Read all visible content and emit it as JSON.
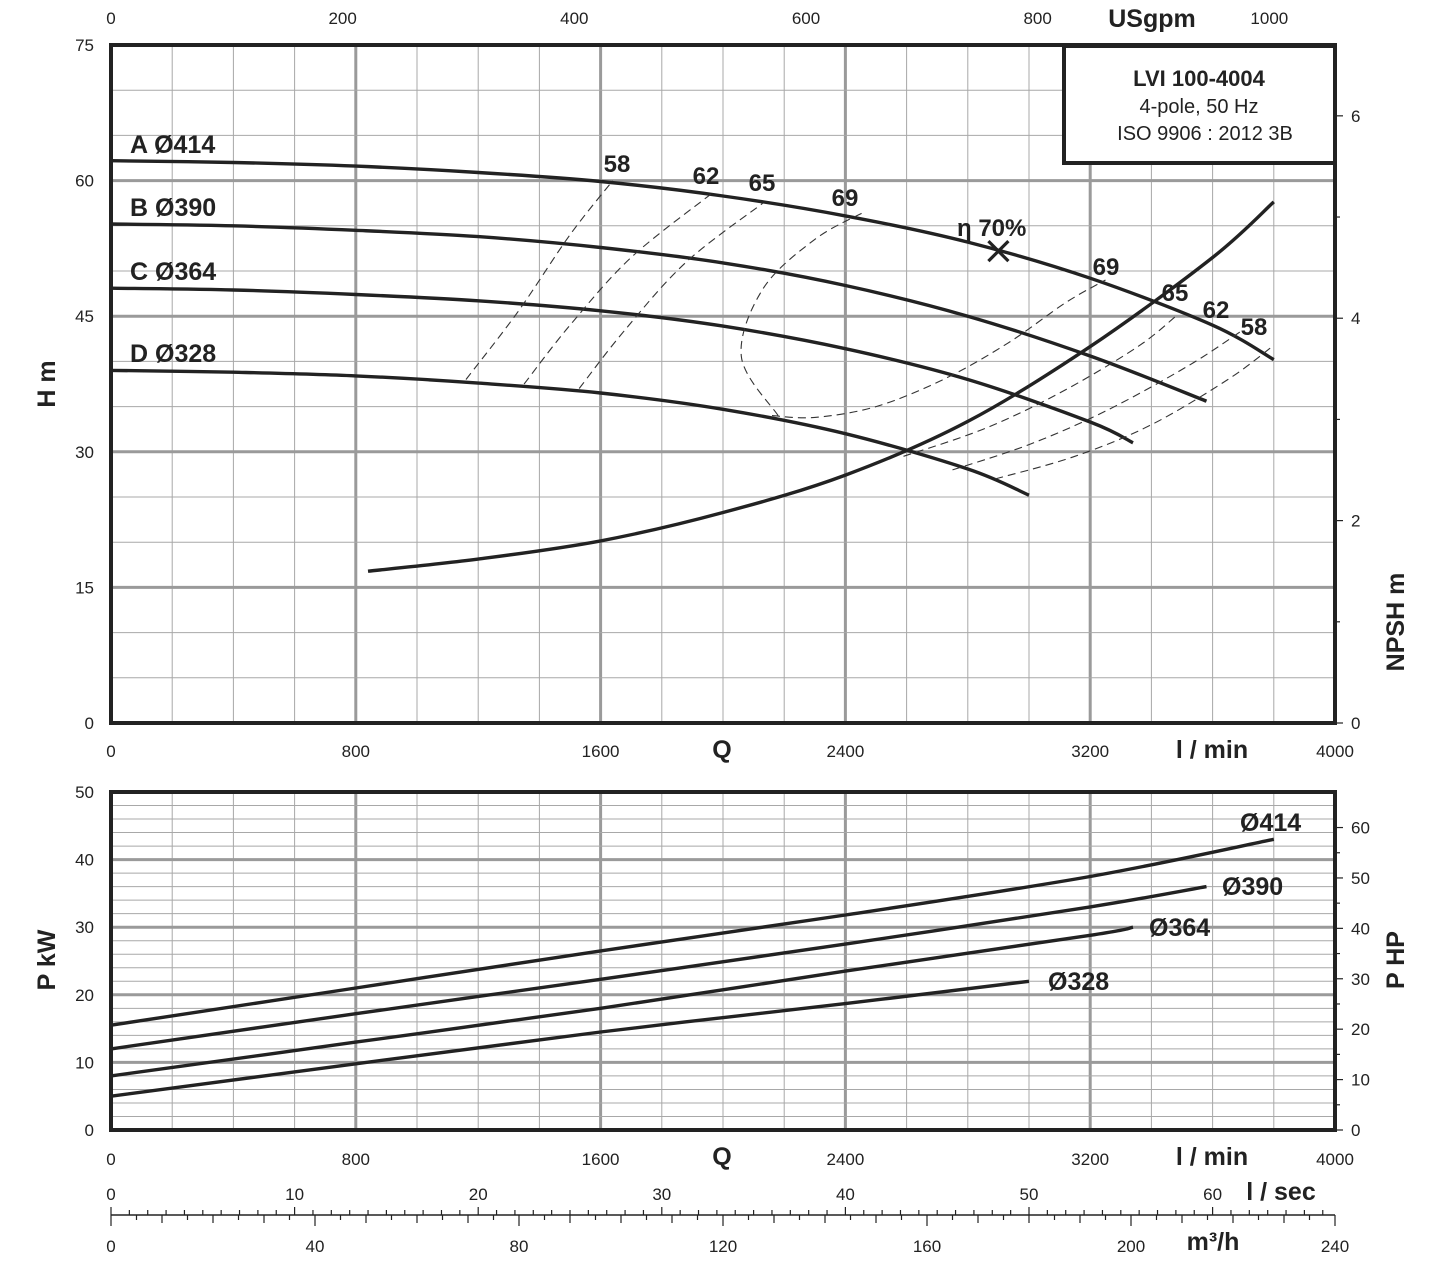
{
  "chart_data": [
    {
      "type": "line",
      "name": "head-chart",
      "title_box": {
        "line1": "LVI 100-4004",
        "line2": "4-pole, 50 Hz",
        "line3": "ISO 9906 : 2012 3B"
      },
      "x_axis": {
        "label": "Q",
        "unit": "l / min",
        "range": [
          0,
          4000
        ],
        "ticks": [
          0,
          800,
          1600,
          2400,
          3200,
          4000
        ]
      },
      "x2_axis": {
        "unit": "USgpm",
        "range": [
          0,
          1056.7
        ],
        "ticks": [
          0,
          200,
          400,
          600,
          800,
          1000
        ]
      },
      "y_axis": {
        "label": "H m",
        "range": [
          0,
          75
        ],
        "ticks": [
          0,
          15,
          30,
          45,
          60,
          75
        ]
      },
      "y2_axis": {
        "label": "NPSH m",
        "ticks": [
          0,
          2,
          4,
          6
        ]
      },
      "series": [
        {
          "name": "A Ø414",
          "x": [
            0,
            400,
            800,
            1200,
            1600,
            2000,
            2400,
            2800,
            3200,
            3600,
            3800
          ],
          "y": [
            62.2,
            62.0,
            61.6,
            60.9,
            59.9,
            58.3,
            56.1,
            53.2,
            49.2,
            44.0,
            40.2
          ]
        },
        {
          "name": "B Ø390",
          "x": [
            0,
            400,
            800,
            1200,
            1600,
            2000,
            2400,
            2800,
            3200,
            3580
          ],
          "y": [
            55.2,
            55.0,
            54.5,
            53.8,
            52.6,
            50.9,
            48.4,
            45.0,
            40.6,
            35.6
          ]
        },
        {
          "name": "C Ø364",
          "x": [
            0,
            400,
            800,
            1200,
            1600,
            2000,
            2400,
            2800,
            3200,
            3340
          ],
          "y": [
            48.1,
            47.9,
            47.4,
            46.7,
            45.6,
            43.9,
            41.4,
            38.0,
            33.3,
            31.0
          ]
        },
        {
          "name": "D Ø328",
          "x": [
            0,
            400,
            800,
            1200,
            1600,
            2000,
            2400,
            2800,
            3000
          ],
          "y": [
            39.0,
            38.8,
            38.4,
            37.6,
            36.5,
            34.7,
            32.0,
            28.1,
            25.2
          ]
        }
      ],
      "npsh": {
        "x": [
          840,
          1200,
          1600,
          2000,
          2400,
          2800,
          3200,
          3600,
          3800
        ],
        "y": [
          1.5,
          1.62,
          1.8,
          2.08,
          2.45,
          2.98,
          3.72,
          4.6,
          5.15
        ],
        "range": [
          0,
          6.7
        ]
      },
      "efficiency": {
        "bep": {
          "label": "η 70%",
          "x": 2900,
          "y": 52.2
        },
        "iso_lines": [
          {
            "label": "58",
            "x": [
              1160,
              1330,
              1500,
              1640
            ],
            "y": [
              38.0,
              45.5,
              54.0,
              60.0
            ]
          },
          {
            "label": "62",
            "x": [
              1350,
              1500,
              1700,
              1960
            ],
            "y": [
              37.5,
              44.0,
              51.5,
              58.5
            ]
          },
          {
            "label": "65",
            "x": [
              1530,
              1680,
              1880,
              2130
            ],
            "y": [
              37.0,
              43.5,
              51.0,
              57.5
            ]
          },
          {
            "label": "69",
            "x": [
              2180,
              2060,
              2130,
              2300,
              2460
            ],
            "y": [
              34.0,
              40.5,
              48.0,
              53.5,
              56.5
            ]
          },
          {
            "label": "69",
            "x": [
              2160,
              2300,
              2500,
              2720,
              2930,
              3120,
              3250
            ],
            "y": [
              34.0,
              33.8,
              35.0,
              38.0,
              42.0,
              46.5,
              49.0
            ]
          },
          {
            "label": "65",
            "x": [
              2590,
              2850,
              3100,
              3350,
              3480
            ],
            "y": [
              29.5,
              32.5,
              36.5,
              41.5,
              45.0
            ]
          },
          {
            "label": "62",
            "x": [
              2750,
              3000,
              3250,
              3520,
              3700
            ],
            "y": [
              28.0,
              30.8,
              34.5,
              39.5,
              43.5
            ]
          },
          {
            "label": "58",
            "x": [
              2890,
              3150,
              3400,
              3650,
              3790
            ],
            "y": [
              27.0,
              29.5,
              33.0,
              38.0,
              41.5
            ]
          }
        ],
        "top_labels": [
          "58",
          "62",
          "65",
          "69"
        ],
        "right_labels": [
          "69",
          "65",
          "62",
          "58"
        ]
      }
    },
    {
      "type": "line",
      "name": "power-chart",
      "x_axis": {
        "label": "Q",
        "unit": "l / min",
        "range": [
          0,
          4000
        ],
        "ticks": [
          0,
          800,
          1600,
          2400,
          3200,
          4000
        ]
      },
      "y_axis": {
        "label": "P kW",
        "range": [
          0,
          50
        ],
        "ticks": [
          0,
          10,
          20,
          30,
          40,
          50
        ]
      },
      "y2_axis": {
        "label": "P HP",
        "ticks": [
          0,
          10,
          20,
          30,
          40,
          50,
          60
        ]
      },
      "series": [
        {
          "name": "Ø414",
          "x": [
            0,
            800,
            1600,
            2400,
            3200,
            3800
          ],
          "y": [
            15.5,
            21.0,
            26.5,
            31.8,
            37.5,
            43.0
          ]
        },
        {
          "name": "Ø390",
          "x": [
            0,
            800,
            1600,
            2400,
            3200,
            3580
          ],
          "y": [
            12.0,
            17.2,
            22.3,
            27.5,
            33.0,
            36.0
          ]
        },
        {
          "name": "Ø364",
          "x": [
            0,
            800,
            1600,
            2400,
            3200,
            3340
          ],
          "y": [
            8.0,
            13.0,
            18.0,
            23.5,
            28.8,
            30.0
          ]
        },
        {
          "name": "Ø328",
          "x": [
            0,
            800,
            1600,
            2400,
            3000
          ],
          "y": [
            5.0,
            9.8,
            14.5,
            18.7,
            22.0
          ]
        }
      ],
      "lsec_axis": {
        "unit": "l / sec",
        "ticks": [
          0,
          10,
          20,
          30,
          40,
          50,
          60
        ]
      },
      "m3h_axis": {
        "unit": "m³/h",
        "ticks": [
          0,
          40,
          80,
          120,
          160,
          200,
          240
        ]
      }
    }
  ]
}
